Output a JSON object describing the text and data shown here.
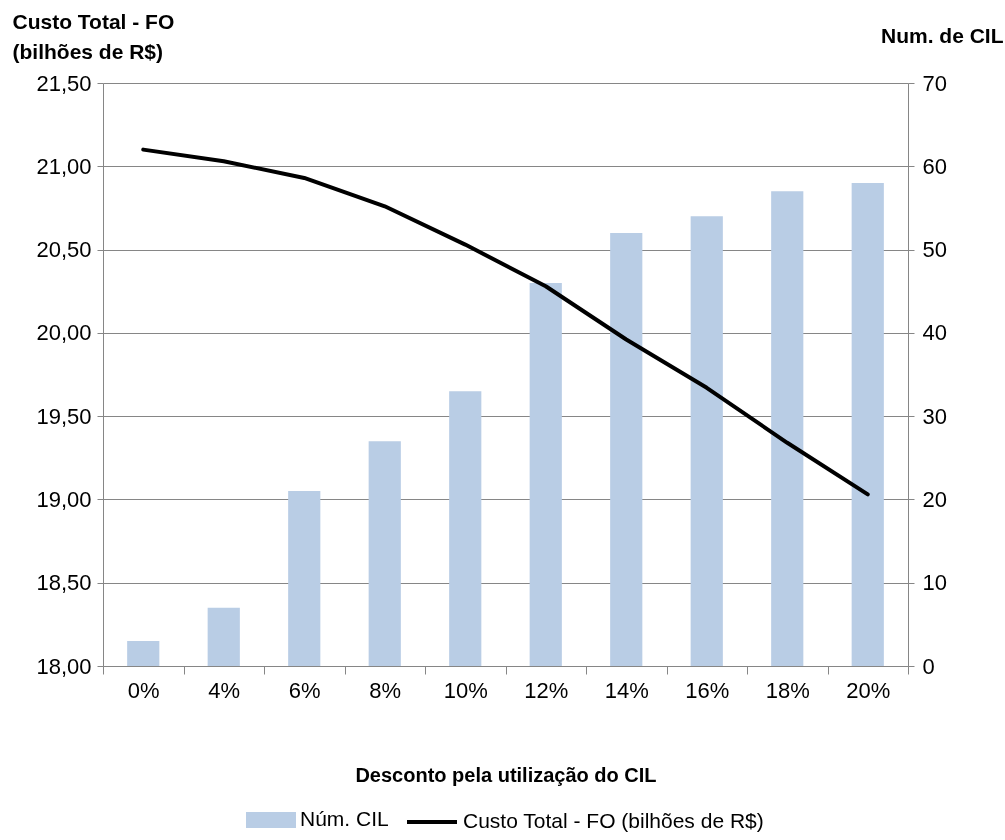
{
  "chart_data": {
    "type": "bar",
    "xlabel": "Desconto pela utilização do CIL",
    "ylabel": "Custo Total - FO (bilhões de R$)",
    "y2label": "Num. de CIL",
    "categories": [
      "0%",
      "4%",
      "6%",
      "8%",
      "10%",
      "12%",
      "14%",
      "16%",
      "18%",
      "20%"
    ],
    "series": [
      {
        "type": "bar",
        "name": "Núm. CIL",
        "color": "#b9cde5",
        "axis": "y2",
        "values": [
          3,
          7,
          21,
          27,
          33,
          46,
          52,
          54,
          57,
          58
        ]
      },
      {
        "type": "line",
        "name": "Custo Total - FO (bilhões de R$)",
        "color": "#000000",
        "values": [
          21.1,
          21.03,
          20.93,
          20.76,
          20.53,
          20.28,
          19.96,
          19.67,
          19.34,
          19.03
        ]
      }
    ],
    "ylim": [
      18,
      21.5
    ],
    "yticks": [
      {
        "value": 18,
        "label": "18,00"
      },
      {
        "value": 18.5,
        "label": "18,50"
      },
      {
        "value": 19,
        "label": "19,00"
      },
      {
        "value": 19.5,
        "label": "19,50"
      },
      {
        "value": 20,
        "label": "20,00"
      },
      {
        "value": 20.5,
        "label": "20,50"
      },
      {
        "value": 21,
        "label": "21,00"
      },
      {
        "value": 21.5,
        "label": "21,50"
      }
    ],
    "y2lim": [
      0,
      70
    ],
    "y2ticks": [
      0,
      10,
      20,
      30,
      40,
      50,
      60,
      70
    ],
    "grid": "y",
    "legend": "bottom"
  }
}
